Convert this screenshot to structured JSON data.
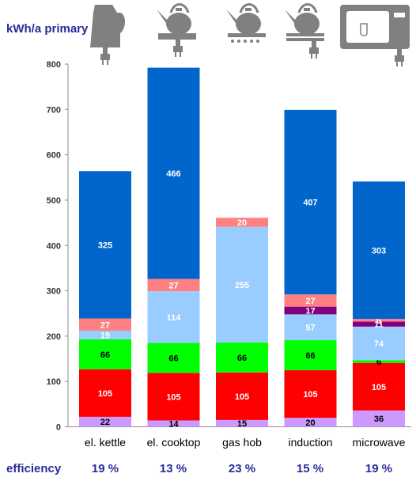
{
  "unit_label": "kWh/a primary",
  "efficiency_label": "efficiency",
  "efficiencies": [
    "19 %",
    "13 %",
    "23 %",
    "15 %",
    "19 %"
  ],
  "icons": [
    "kettle-icon",
    "cooktop-kettle-icon",
    "gas-hob-kettle-icon",
    "induction-kettle-icon",
    "microwave-icon"
  ],
  "colors": {
    "seg1": "#cc99ff",
    "seg2": "#ff0000",
    "seg3": "#00ff00",
    "seg4": "#99ccff",
    "seg5": "#800080",
    "seg6": "#ff8080",
    "seg7": "#0066cc",
    "icon_gray": "#808080",
    "text_blue": "#2b2a9b"
  },
  "chart_data": {
    "type": "bar",
    "stacked": true,
    "categories": [
      "el. kettle",
      "el. cooktop",
      "gas hob",
      "induction",
      "microwave"
    ],
    "ylim": [
      0,
      800
    ],
    "yticks": [
      0,
      100,
      200,
      300,
      400,
      500,
      600,
      700,
      800
    ],
    "grid": false,
    "legend": "none",
    "series": [
      {
        "values": [
          22,
          14,
          15,
          20,
          36
        ]
      },
      {
        "values": [
          105,
          105,
          105,
          105,
          105
        ]
      },
      {
        "values": [
          66,
          66,
          66,
          66,
          6
        ]
      },
      {
        "values": [
          19,
          114,
          255,
          57,
          74
        ]
      },
      {
        "values": [
          0,
          0,
          0,
          17,
          11
        ]
      },
      {
        "values": [
          27,
          27,
          20,
          27,
          6
        ]
      },
      {
        "values": [
          325,
          466,
          0,
          407,
          303
        ]
      }
    ]
  }
}
